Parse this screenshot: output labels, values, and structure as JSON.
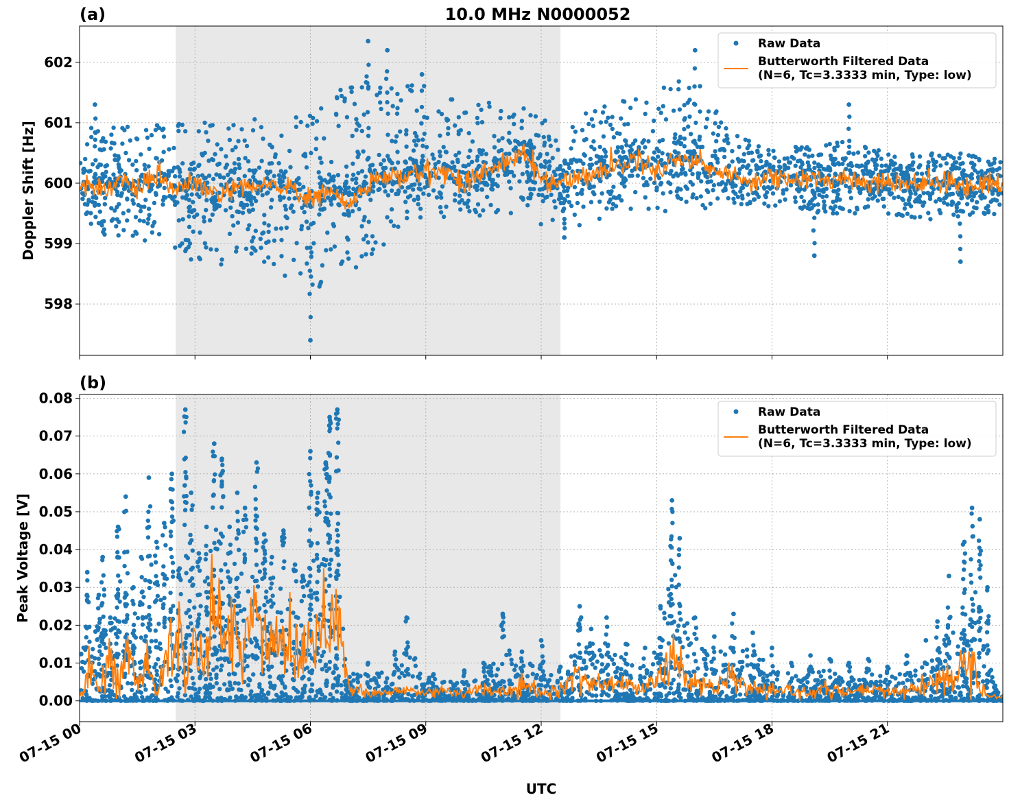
{
  "figure": {
    "title": "10.0 MHz N0000052",
    "xlabel": "UTC",
    "x_ticks": [
      "07-15 00",
      "07-15 03",
      "07-15 06",
      "07-15 09",
      "07-15 12",
      "07-15 15",
      "07-15 18",
      "07-15 21"
    ]
  },
  "chart_data": [
    {
      "type": "scatter",
      "panel_label": "(a)",
      "title": "10.0 MHz N0000052",
      "xlabel": "UTC",
      "ylabel": "Doppler Shift [Hz]",
      "xlim_hours": [
        0,
        24
      ],
      "ylim": [
        597.15,
        602.6
      ],
      "y_ticks": [
        598,
        599,
        600,
        601,
        602
      ],
      "grid": true,
      "legend_position": "top-right",
      "shaded_region_hours": [
        2.5,
        12.5
      ],
      "colors": {
        "raw": "#1f77b4",
        "filtered": "#ff7f0e",
        "shade": "#e8e8e8"
      },
      "series": [
        {
          "name": "Raw Data",
          "style": "points",
          "envelope": {
            "hours": [
              0,
              1,
              2,
              3,
              4,
              5,
              6,
              6.5,
              7,
              7.5,
              8,
              8.5,
              9,
              10,
              11,
              12,
              12.5,
              13,
              14,
              15,
              16,
              17,
              18,
              19,
              20,
              21,
              22,
              23,
              24
            ],
            "upper": [
              600.9,
              601.0,
              601.0,
              601.0,
              601.1,
              601.1,
              601.2,
              601.5,
              601.6,
              601.8,
              601.9,
              601.7,
              601.6,
              601.4,
              601.3,
              601.3,
              600.8,
              601.1,
              601.5,
              601.6,
              601.9,
              600.8,
              600.6,
              600.6,
              600.7,
              600.5,
              600.5,
              600.5,
              600.4
            ],
            "lower": [
              599.2,
              599.1,
              599.0,
              598.7,
              598.6,
              598.7,
              597.9,
              598.6,
              598.4,
              598.8,
              598.9,
              599.2,
              599.3,
              599.4,
              599.5,
              599.3,
              599.3,
              599.3,
              599.4,
              599.4,
              599.5,
              599.6,
              599.6,
              599.5,
              599.5,
              599.5,
              599.4,
              599.4,
              599.5
            ]
          },
          "notable_points": [
            {
              "hour": 0.4,
              "value": 601.3
            },
            {
              "hour": 6.0,
              "value": 597.4
            },
            {
              "hour": 7.5,
              "value": 602.35
            },
            {
              "hour": 8.0,
              "value": 602.2
            },
            {
              "hour": 8.9,
              "value": 601.8
            },
            {
              "hour": 12.6,
              "value": 599.1
            },
            {
              "hour": 16.0,
              "value": 602.2
            },
            {
              "hour": 19.1,
              "value": 598.8
            },
            {
              "hour": 20.0,
              "value": 601.3
            },
            {
              "hour": 22.9,
              "value": 598.7
            }
          ]
        },
        {
          "name": "Butterworth Filtered Data\n(N=6, Tc=3.3333 min, Type: low)",
          "style": "line",
          "x_hours": [
            0,
            0.5,
            1,
            1.5,
            2,
            2.5,
            3,
            3.5,
            4,
            4.5,
            5,
            5.5,
            6,
            6.5,
            7,
            7.5,
            8,
            8.5,
            9,
            9.5,
            10,
            10.5,
            11,
            11.5,
            12,
            12.5,
            13,
            13.5,
            14,
            14.5,
            15,
            15.5,
            16,
            16.5,
            17,
            17.5,
            18,
            18.5,
            19,
            19.5,
            20,
            20.5,
            21,
            21.5,
            22,
            22.5,
            23,
            23.5,
            24
          ],
          "values": [
            600.0,
            599.9,
            600.0,
            599.9,
            600.1,
            599.9,
            600.0,
            599.8,
            599.9,
            599.9,
            600.0,
            599.9,
            599.7,
            599.9,
            599.6,
            600.0,
            600.1,
            600.1,
            600.2,
            600.2,
            600.0,
            600.2,
            600.3,
            600.5,
            600.1,
            600.0,
            600.1,
            600.2,
            600.3,
            600.4,
            600.2,
            600.4,
            600.4,
            600.2,
            600.1,
            600.05,
            600.1,
            600.05,
            600.05,
            600.05,
            600.1,
            600.0,
            600.05,
            600.0,
            600.0,
            600.0,
            599.95,
            600.0,
            600.0
          ]
        }
      ]
    },
    {
      "type": "scatter",
      "panel_label": "(b)",
      "xlabel": "UTC",
      "ylabel": "Peak Voltage [V]",
      "xlim_hours": [
        0,
        24
      ],
      "ylim": [
        -0.0055,
        0.081
      ],
      "y_ticks": [
        0.0,
        0.01,
        0.02,
        0.03,
        0.04,
        0.05,
        0.06,
        0.07,
        0.08
      ],
      "y_tick_labels": [
        "0.00",
        "0.01",
        "0.02",
        "0.03",
        "0.04",
        "0.05",
        "0.06",
        "0.07",
        "0.08"
      ],
      "grid": true,
      "legend_position": "top-right",
      "shaded_region_hours": [
        2.5,
        12.5
      ],
      "colors": {
        "raw": "#1f77b4",
        "filtered": "#ff7f0e",
        "shade": "#e8e8e8"
      },
      "series": [
        {
          "name": "Raw Data",
          "style": "points",
          "spikes": [
            {
              "hour": 0.2,
              "value": 0.034
            },
            {
              "hour": 0.5,
              "value": 0.028
            },
            {
              "hour": 0.6,
              "value": 0.038
            },
            {
              "hour": 0.8,
              "value": 0.022
            },
            {
              "hour": 1.0,
              "value": 0.046
            },
            {
              "hour": 1.2,
              "value": 0.054
            },
            {
              "hour": 1.4,
              "value": 0.03
            },
            {
              "hour": 1.6,
              "value": 0.038
            },
            {
              "hour": 1.8,
              "value": 0.059
            },
            {
              "hour": 2.0,
              "value": 0.042
            },
            {
              "hour": 2.2,
              "value": 0.047
            },
            {
              "hour": 2.4,
              "value": 0.06
            },
            {
              "hour": 2.6,
              "value": 0.035
            },
            {
              "hour": 2.75,
              "value": 0.077
            },
            {
              "hour": 2.9,
              "value": 0.055
            },
            {
              "hour": 3.1,
              "value": 0.039
            },
            {
              "hour": 3.3,
              "value": 0.046
            },
            {
              "hour": 3.5,
              "value": 0.068
            },
            {
              "hour": 3.7,
              "value": 0.064
            },
            {
              "hour": 3.9,
              "value": 0.046
            },
            {
              "hour": 4.1,
              "value": 0.055
            },
            {
              "hour": 4.3,
              "value": 0.051
            },
            {
              "hour": 4.6,
              "value": 0.063
            },
            {
              "hour": 4.8,
              "value": 0.044
            },
            {
              "hour": 5.0,
              "value": 0.038
            },
            {
              "hour": 5.3,
              "value": 0.045
            },
            {
              "hour": 5.6,
              "value": 0.036
            },
            {
              "hour": 5.8,
              "value": 0.033
            },
            {
              "hour": 6.0,
              "value": 0.066
            },
            {
              "hour": 6.2,
              "value": 0.055
            },
            {
              "hour": 6.4,
              "value": 0.063
            },
            {
              "hour": 6.5,
              "value": 0.075
            },
            {
              "hour": 6.7,
              "value": 0.077
            },
            {
              "hour": 6.9,
              "value": 0.011
            },
            {
              "hour": 7.5,
              "value": 0.01
            },
            {
              "hour": 8.2,
              "value": 0.013
            },
            {
              "hour": 8.5,
              "value": 0.022
            },
            {
              "hour": 9.2,
              "value": 0.007
            },
            {
              "hour": 10.0,
              "value": 0.008
            },
            {
              "hour": 10.5,
              "value": 0.01
            },
            {
              "hour": 11.0,
              "value": 0.023
            },
            {
              "hour": 11.5,
              "value": 0.013
            },
            {
              "hour": 12.0,
              "value": 0.016
            },
            {
              "hour": 12.5,
              "value": 0.009
            },
            {
              "hour": 13.0,
              "value": 0.025
            },
            {
              "hour": 13.3,
              "value": 0.019
            },
            {
              "hour": 13.7,
              "value": 0.022
            },
            {
              "hour": 14.2,
              "value": 0.015
            },
            {
              "hour": 14.7,
              "value": 0.014
            },
            {
              "hour": 15.1,
              "value": 0.025
            },
            {
              "hour": 15.4,
              "value": 0.053
            },
            {
              "hour": 15.6,
              "value": 0.043
            },
            {
              "hour": 16.0,
              "value": 0.022
            },
            {
              "hour": 16.5,
              "value": 0.017
            },
            {
              "hour": 17.0,
              "value": 0.023
            },
            {
              "hour": 17.5,
              "value": 0.018
            },
            {
              "hour": 18.0,
              "value": 0.014
            },
            {
              "hour": 18.5,
              "value": 0.01
            },
            {
              "hour": 19.0,
              "value": 0.012
            },
            {
              "hour": 19.5,
              "value": 0.011
            },
            {
              "hour": 20.0,
              "value": 0.01
            },
            {
              "hour": 20.5,
              "value": 0.011
            },
            {
              "hour": 21.0,
              "value": 0.009
            },
            {
              "hour": 21.5,
              "value": 0.012
            },
            {
              "hour": 22.0,
              "value": 0.016
            },
            {
              "hour": 22.3,
              "value": 0.021
            },
            {
              "hour": 22.6,
              "value": 0.033
            },
            {
              "hour": 23.0,
              "value": 0.042
            },
            {
              "hour": 23.2,
              "value": 0.051
            },
            {
              "hour": 23.4,
              "value": 0.048
            },
            {
              "hour": 23.6,
              "value": 0.03
            },
            {
              "hour": 23.8,
              "value": 0.004
            }
          ]
        },
        {
          "name": "Butterworth Filtered Data\n(N=6, Tc=3.3333 min, Type: low)",
          "style": "line",
          "x_hours": [
            0,
            0.25,
            0.5,
            0.75,
            1,
            1.25,
            1.5,
            1.75,
            2,
            2.25,
            2.5,
            2.75,
            3,
            3.25,
            3.5,
            3.75,
            4,
            4.25,
            4.5,
            4.75,
            5,
            5.25,
            5.5,
            5.75,
            6,
            6.25,
            6.5,
            6.75,
            7,
            7.5,
            8,
            8.5,
            9,
            9.5,
            10,
            10.5,
            11,
            11.5,
            12,
            12.5,
            13,
            13.5,
            14,
            14.5,
            15,
            15.5,
            16,
            16.5,
            17,
            17.5,
            18,
            18.5,
            19,
            19.5,
            20,
            20.5,
            21,
            21.5,
            22,
            22.5,
            23,
            23.25,
            23.5,
            23.75,
            24
          ],
          "values": [
            0.002,
            0.008,
            0.004,
            0.011,
            0.006,
            0.013,
            0.003,
            0.009,
            0.002,
            0.01,
            0.025,
            0.003,
            0.019,
            0.008,
            0.027,
            0.014,
            0.022,
            0.012,
            0.025,
            0.016,
            0.018,
            0.016,
            0.015,
            0.012,
            0.017,
            0.02,
            0.024,
            0.022,
            0.003,
            0.002,
            0.002,
            0.003,
            0.002,
            0.003,
            0.002,
            0.003,
            0.002,
            0.004,
            0.002,
            0.003,
            0.007,
            0.004,
            0.005,
            0.003,
            0.007,
            0.01,
            0.005,
            0.003,
            0.006,
            0.003,
            0.002,
            0.003,
            0.002,
            0.003,
            0.002,
            0.003,
            0.002,
            0.003,
            0.004,
            0.006,
            0.009,
            0.012,
            0.003,
            0.001,
            0.001
          ]
        }
      ]
    }
  ]
}
